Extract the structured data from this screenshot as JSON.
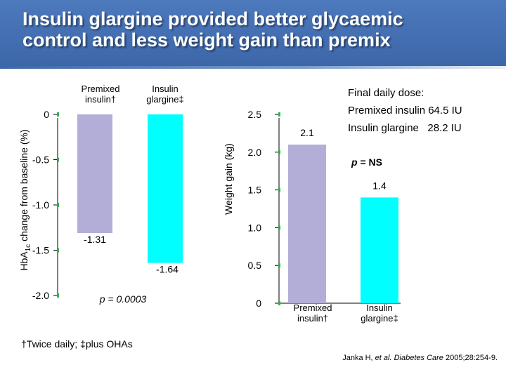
{
  "slide": {
    "title_line1": "Insulin glargine provided better glycaemic",
    "title_line2": "control and less weight gain than premix",
    "footnote": "†Twice daily; ‡plus OHAs",
    "citation_authors": "Janka H, ",
    "citation_etal": "et al.",
    "citation_journal": "Diabetes Care",
    "citation_ref": "2005;28:254-9."
  },
  "dose_box": {
    "heading": "Final daily dose:",
    "line1": "Premixed insulin 64.5 IU",
    "line2": "Insulin glargine   28.2 IU"
  },
  "colors": {
    "premixed": "#b3aed8",
    "glargine": "#00ffff",
    "tick_marker": "#2db14a"
  },
  "chart_data": [
    {
      "type": "bar",
      "title": "",
      "ylabel_main": "HbA",
      "ylabel_sub": "1c",
      "ylabel_rest": " change from baseline (%)",
      "xlabel": "",
      "categories": [
        "Premixed insulin†",
        "Insulin glargine‡"
      ],
      "category_labels_line1": [
        "Premixed",
        "Insulin"
      ],
      "category_labels_line2": [
        "insulin†",
        "glargine‡"
      ],
      "values": [
        -1.31,
        -1.64
      ],
      "value_labels": [
        "-1.31",
        "-1.64"
      ],
      "yticks": [
        0,
        -0.5,
        -1.0,
        -1.5,
        -2.0
      ],
      "ytick_labels": [
        "0",
        "-0.5",
        "-1.0",
        "-1.5",
        "-2.0"
      ],
      "ylim": [
        -2.0,
        0
      ],
      "annotation": "p = 0.0003",
      "grid": false,
      "legend": "none"
    },
    {
      "type": "bar",
      "title": "",
      "ylabel": "Weight gain (kg)",
      "xlabel": "",
      "categories": [
        "Premixed insulin†",
        "Insulin glargine‡"
      ],
      "category_labels_line1": [
        "Premixed",
        "Insulin"
      ],
      "category_labels_line2": [
        "insulin†",
        "glargine‡"
      ],
      "values": [
        2.1,
        1.4
      ],
      "value_labels": [
        "2.1",
        "1.4"
      ],
      "yticks": [
        0,
        0.5,
        1.0,
        1.5,
        2.0,
        2.5
      ],
      "ytick_labels": [
        "0",
        "0.5",
        "1.0",
        "1.5",
        "2.0",
        "2.5"
      ],
      "ylim": [
        0,
        2.5
      ],
      "annotation": "p = NS",
      "grid": false,
      "legend": "none"
    }
  ]
}
